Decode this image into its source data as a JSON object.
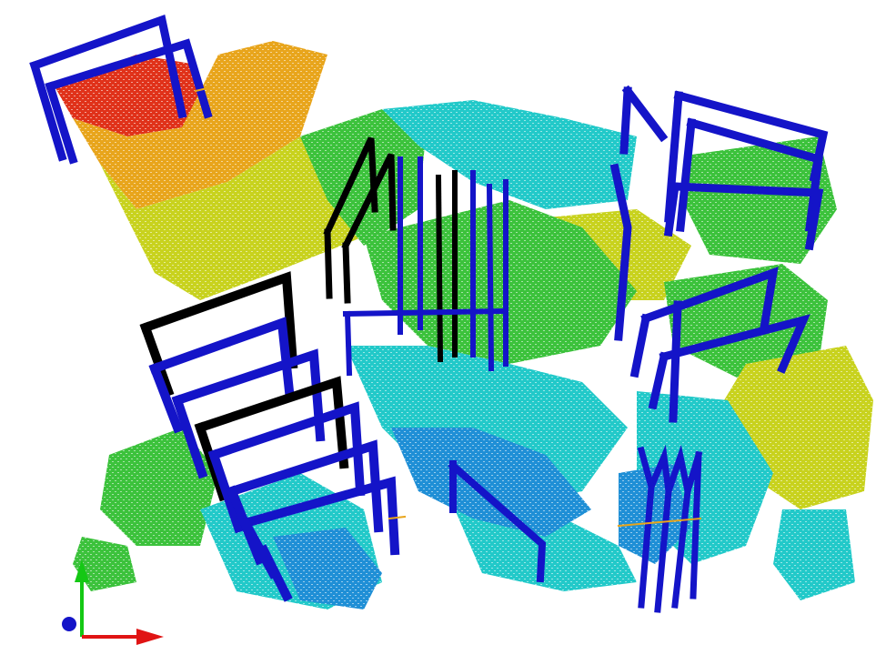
{
  "scene": {
    "kind": "point-cloud-viewer",
    "background": "#ffffff",
    "height_colormap": [
      "#0a1fb0",
      "#1f8fd6",
      "#22c9c9",
      "#3cc23c",
      "#c8d21e",
      "#e8a51c",
      "#e0321a"
    ],
    "frame_colors": {
      "estimated": "#1414c8",
      "reference": "#000000"
    },
    "axis_colors": {
      "x": "#e01414",
      "y": "#14c814",
      "z": "#1414c8"
    },
    "axis_icons": [
      "x-axis-arrow-icon",
      "y-axis-arrow-icon",
      "z-axis-dot-icon"
    ]
  }
}
